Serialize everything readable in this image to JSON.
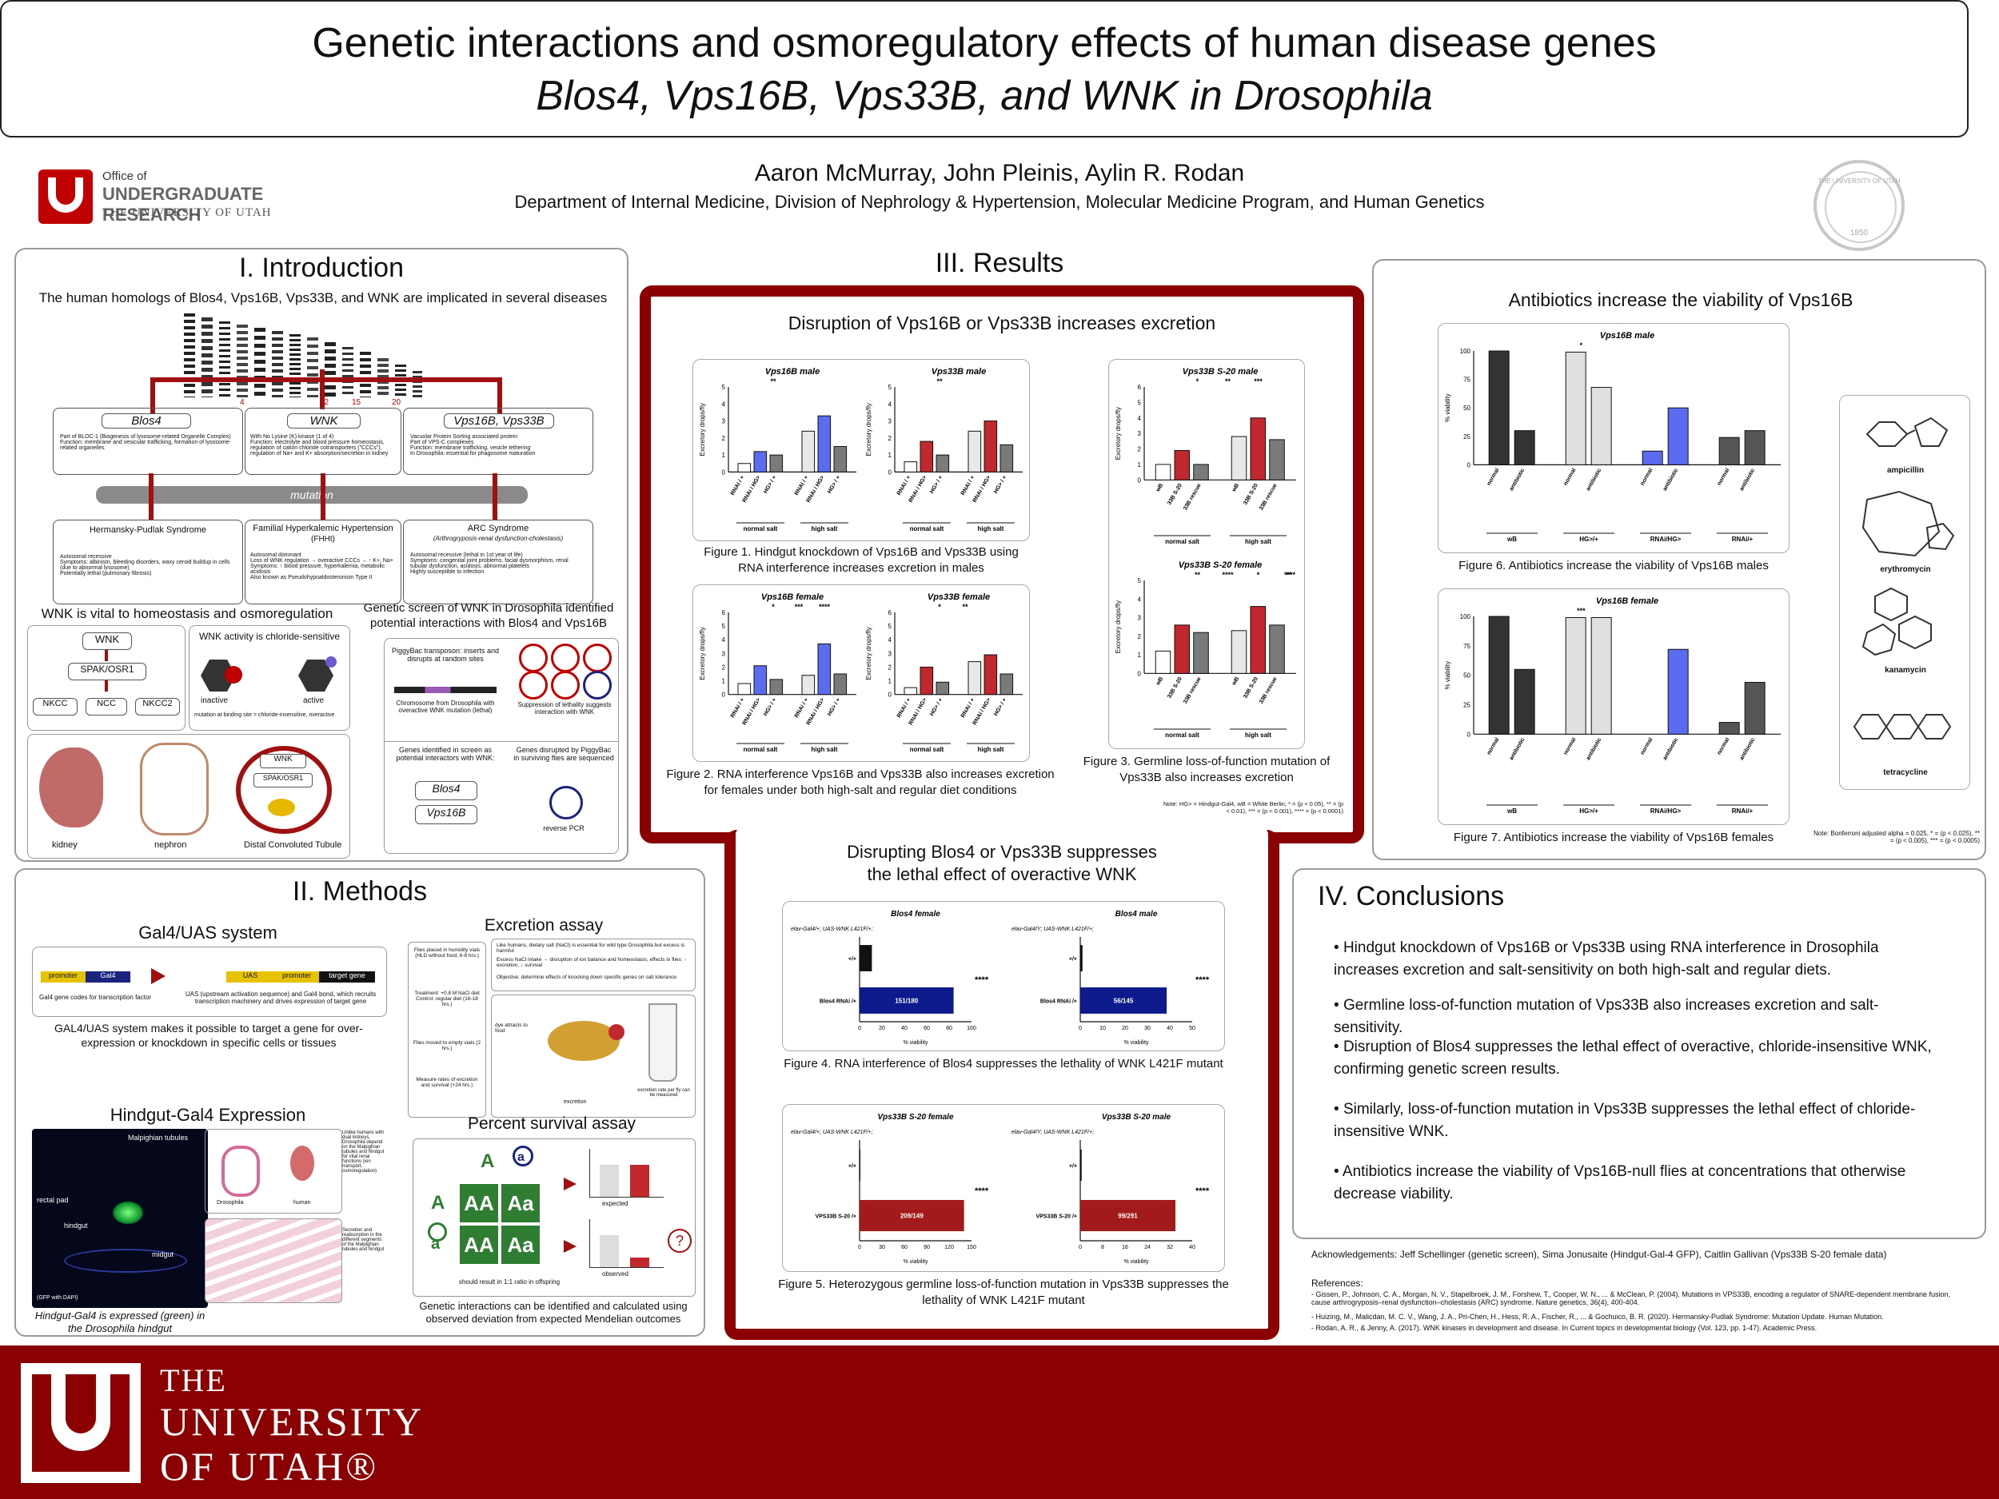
{
  "title": {
    "line1": "Genetic interactions and osmoregulatory effects of human disease genes",
    "line2": "Blos4, Vps16B, Vps33B, and WNK in Drosophila"
  },
  "header": {
    "office_line1": "Office of",
    "office_line2": "UNDERGRADUATE RESEARCH",
    "office_line3": "THE UNIVERSITY OF UTAH",
    "authors": "Aaron McMurray, John Pleinis, Aylin R. Rodan",
    "department": "Department of Internal Medicine, Division of Nephrology & Hypertension, Molecular Medicine Program, and Human Genetics",
    "seal_text": "THE UNIVERSITY OF UTAH",
    "seal_year": "1850"
  },
  "intro": {
    "heading": "I. Introduction",
    "subtitle": "The human homologs of Blos4, Vps16B, Vps33B, and WNK are implicated in several diseases",
    "genes": [
      "Blos4",
      "WNK",
      "Vps16B, Vps33B"
    ],
    "chromosomes": [
      "4",
      "12",
      "15",
      "20"
    ],
    "gene_notes": [
      "Part of BLOC-1 (Biogenesis of lysosome-related Organelle Complex)\nFunction: membrane and vesicular trafficking, formation of lysosome-related organelles",
      "With No Lysine (K) kinase (1 of 4)\nFunction: electrolyte and blood pressure homeostasis, regulation of cation chloride cotransporters (\"CCCs\"), regulation of Na+ and K+ absorption/secretion in kidney",
      "Vacuolar Protein Sorting associated protein\nPart of VPS-C complexes\nFunction: membrane trafficking, vesicle tethering\nIn Drosophila: essential for phagosome maturation"
    ],
    "mutation_label": "mutation",
    "diseases": [
      {
        "name": "Hermansky-Pudlak Syndrome",
        "sub": "",
        "notes": "Autosomal recessive\nSymptoms: albinism, bleeding disorders, waxy ceroid buildup in cells (due to abnormal lysosome)\nPotentially lethal (pulmonary fibrosis)"
      },
      {
        "name": "Familial Hyperkalemic Hypertension",
        "sub": "(FHHt)",
        "notes": "Autosomal dominant\nLoss of WNK regulation → overactive CCCs → ↑ K+, Na+\nSymptoms: ↑ blood pressure, hyperkalemia, metabolic acidosis\nAlso known as Pseudohypoaldosteronism Type II"
      },
      {
        "name": "ARC Syndrome",
        "sub": "(Arthrogryposis-renal dysfunction-cholestasis)",
        "notes": "Autosomal recessive (lethal in 1st year of life)\nSymptoms: congenital joint problems, facial dysmorphism, renal tubular dysfunction, acidosis, abnormal platelets\nHighly susceptible to infection"
      }
    ],
    "wnk_heading": "WNK is vital to homeostasis and osmoregulation",
    "wnk_nodes": [
      "WNK",
      "SPAK/OSR1",
      "NKCC",
      "NCC",
      "NKCC2"
    ],
    "wnk_chloride": "WNK activity is chloride-sensitive",
    "wnk_states": [
      "inactive",
      "active"
    ],
    "wnk_mut_note": "mutation at binding site = chloride-insensitive, overactive",
    "kidney_labels": [
      "kidney",
      "nephron",
      "Distal Convoluted Tubule"
    ],
    "screen_heading": "Genetic screen of WNK in Drosophila identified potential interactions with Blos4 and Vps16B",
    "screen_box1": "PiggyBac transposon: inserts and disrupts at random sites",
    "screen_box2": "Chromosome from Drosophila with overactive WNK mutation (lethal)",
    "screen_box3": "Suppression of lethality suggests interaction with WNK",
    "screen_box4": "Genes identified in screen as potential interactors with WNK:",
    "screen_genes": [
      "Blos4",
      "Vps16B"
    ],
    "screen_box5": "Genes disrupted by PiggyBac in surviving flies are sequenced",
    "screen_pcr": "reverse PCR"
  },
  "methods": {
    "heading": "II. Methods",
    "gal4_title": "Gal4/UAS system",
    "gal4_labels": [
      "promoter",
      "Gal4",
      "UAS",
      "promoter",
      "target gene"
    ],
    "gal4_note1": "Gal4 gene codes for transcription factor",
    "gal4_note2": "UAS (upstream activation sequence) and Gal4 bond, which recruits transcription machinery and drives expression of target gene",
    "gal4_caption": "GAL4/UAS system makes it possible to target a gene for over-expression or knockdown in specific cells or tissues",
    "hindgut_title": "Hindgut-Gal4 Expression",
    "hindgut_labels": [
      "Malpighian tubules",
      "rectal pad",
      "hindgut",
      "midgut",
      "(GFP with DAPI)"
    ],
    "hindgut_caption": "Hindgut-Gal4 is expressed (green) in the Drosophila hindgut",
    "hindgut_note1": "Unlike humans with dual kidneys, Drosophila depend on the Malpighian tubules and hindgut for vital renal functions (ion transport, osmoregulation)",
    "hindgut_note2": "Secretion and reabsorption in the different segments of the Malpighian tubules and hindgut",
    "hindgut_organs": [
      "Drosophila",
      "human"
    ],
    "excretion_title": "Excretion assay",
    "excretion_steps": [
      "Flies placed in humidity vials (HLD without food, 6-8 hrs.)",
      "Treatment: +0.8 M NaCl diet Control: regular diet (16-18 hrs.)",
      "Flies moved to empty vials (2 hrs.)",
      "Measure rates of excretion and survival (+24 hrs.)"
    ],
    "excretion_notes": [
      "Like humans, dietary salt (NaCl) is essential for wild type Drosophila but excess is harmful",
      "Excess NaCl intake → disruption of ion balance and homeostasis; effects in flies: ↑ excretion, ↓ survival",
      "Objective: determine effects of knocking down specific genes on salt tolerance"
    ],
    "excretion_labels": [
      "excretion",
      "dye attracts to food",
      "excretion rate per fly can be measured"
    ],
    "survival_title": "Percent survival assay",
    "punnett": [
      "A",
      "a",
      "A",
      "AA",
      "Aa",
      "a",
      "AA",
      "Aa"
    ],
    "survival_labels": [
      "expected",
      "observed"
    ],
    "survival_note": "should result in 1:1 ratio in offspring",
    "survival_caption": "Genetic interactions can be identified and calculated using observed deviation from expected Mendelian outcomes"
  },
  "results": {
    "heading": "III. Results",
    "excretion_heading": "Disruption of Vps16B or Vps33B increases excretion",
    "fig1_caption": "Figure 1. Hindgut knockdown of Vps16B and Vps33B using RNA interference increases excretion in males",
    "fig2_caption": "Figure 2. RNA interference Vps16B and Vps33B also increases excretion for females under both high-salt and regular diet conditions",
    "fig3_caption": "Figure 3. Germline loss-of-function mutation of Vps33B also increases excretion",
    "fig3_note": "Note: HG> = Hindgut-Gal4, wB = White Berlin; * = (p < 0.05), ** = (p < 0.01), *** = (p < 0.001), **** = (p < 0.0001)",
    "lethal_heading1": "Disrupting Blos4 or Vps33B suppresses",
    "lethal_heading2": "the lethal effect of overactive WNK",
    "fig4_caption": "Figure 4. RNA interference of Blos4 suppresses the lethality of WNK L421F mutant",
    "fig5_caption": "Figure 5. Heterozygous germline loss-of-function mutation in Vps33B suppresses the lethality of WNK L421F mutant",
    "antibiotic_heading": "Antibiotics increase the viability of Vps16B",
    "fig6_caption": "Figure 6. Antibiotics increase the viability of Vps16B males",
    "fig7_caption": "Figure 7. Antibiotics increase the viability of Vps16B females",
    "fig7_note": "Note: Bonferroni adjusted alpha = 0.025, * = (p < 0.025), ** = (p < 0.005), *** = (p < 0.0005)",
    "antibiotics": [
      "ampicillin",
      "erythromycin",
      "kanamycin",
      "tetracycline"
    ]
  },
  "conclusions": {
    "heading": "IV. Conclusions",
    "items": [
      "Hindgut knockdown of Vps16B or Vps33B using RNA interference in Drosophila increases excretion and salt-sensitivity on both high-salt and regular diets.",
      "Germline loss-of-function mutation of Vps33B also increases excretion and salt-sensitivity.",
      "Disruption of Blos4 suppresses the lethal effect of overactive, chloride-insensitive WNK, confirming genetic screen results.",
      "Similarly, loss-of-function mutation in Vps33B suppresses the lethal effect of chloride-insensitive WNK.",
      "Antibiotics increase the viability of Vps16B-null flies at concentrations that otherwise decrease viability."
    ],
    "acknowledgements": "Acknowledgements: Jeff Schellinger (genetic screen), Sima Jonusaite (Hindgut-Gal-4 GFP), Caitlin Gallivan (Vps33B S-20 female data)",
    "refs_heading": "References:",
    "refs": [
      "- Gissen, P., Johnson, C. A., Morgan, N. V., Stapelbroek, J. M., Forshew, T., Cooper, W. N., ... & McClean, P. (2004). Mutations in VPS33B, encoding a regulator of SNARE-dependent membrane fusion, cause arthrogryposis–renal dysfunction–cholestasis (ARC) syndrome. Nature genetics, 36(4), 400-404.",
      "- Huizing, M., Malicdan, M. C. V., Wang, J. A., Pri-Chen, H., Hess, R. A., Fischer, R., ... & Gochuico, B. R. (2020). Hermansky-Pudlak Syndrome: Mutation Update. Human Mutation.",
      "- Rodan, A. R., & Jenny, A. (2017). WNK kinases in development and disease. In Current topics in developmental biology (Vol. 123, pp. 1-47). Academic Press."
    ]
  },
  "footer": {
    "line1": "THE",
    "line2": "UNIVERSITY",
    "line3": "OF UTAH®"
  },
  "colors": {
    "utah_red": "#8b0000",
    "logo_red": "#c00000",
    "blue_bar": "#5b6cf0",
    "red_bar": "#c0282d",
    "navy_bar": "#0d1a8c",
    "dark_red_bar": "#a31a1a"
  },
  "chart_data": [
    {
      "id": "fig1a",
      "type": "bar",
      "title": "Vps16B male",
      "ylabel": "Excretory drops/fly",
      "ylim": [
        0,
        5
      ],
      "categories": [
        "RNAi / +",
        "RNAi / HG>",
        "HG> / +",
        "RNAi / +",
        "RNAi / HG>",
        "HG> / +"
      ],
      "groups": [
        "normal salt",
        "high salt"
      ],
      "values": [
        0.5,
        1.2,
        1.0,
        2.4,
        3.3,
        1.5
      ],
      "colors": [
        "#ffffff",
        "#5b6cf0",
        "#7a7a7a",
        "#e8e8e8",
        "#5b6cf0",
        "#7a7a7a"
      ],
      "sig": [
        "**"
      ]
    },
    {
      "id": "fig1b",
      "type": "bar",
      "title": "Vps33B male",
      "ylabel": "Excretory drops/fly",
      "ylim": [
        0,
        5
      ],
      "categories": [
        "RNAi / +",
        "RNAi / HG>",
        "HG> / +",
        "RNAi / +",
        "RNAi / HG>",
        "HG> / +"
      ],
      "groups": [
        "normal salt",
        "high salt"
      ],
      "values": [
        0.6,
        1.8,
        1.0,
        2.4,
        3.0,
        1.6
      ],
      "colors": [
        "#ffffff",
        "#c0282d",
        "#7a7a7a",
        "#e8e8e8",
        "#c0282d",
        "#7a7a7a"
      ],
      "sig": [
        "**"
      ]
    },
    {
      "id": "fig2a",
      "type": "bar",
      "title": "Vps16B female",
      "ylabel": "Excretory drops/fly",
      "ylim": [
        0,
        6
      ],
      "categories": [
        "RNAi / +",
        "RNAi / HG>",
        "HG> / +",
        "RNAi / +",
        "RNAi / HG>",
        "HG> / +"
      ],
      "groups": [
        "normal salt",
        "high salt"
      ],
      "values": [
        0.8,
        2.1,
        1.1,
        1.4,
        3.7,
        1.5
      ],
      "colors": [
        "#ffffff",
        "#5b6cf0",
        "#7a7a7a",
        "#e8e8e8",
        "#5b6cf0",
        "#7a7a7a"
      ],
      "sig": [
        "*",
        "***",
        "****"
      ]
    },
    {
      "id": "fig2b",
      "type": "bar",
      "title": "Vps33B female",
      "ylabel": "Excretory drops/fly",
      "ylim": [
        0,
        6
      ],
      "categories": [
        "RNAi / +",
        "RNAi / HG>",
        "HG> / +",
        "RNAi / +",
        "RNAi / HG>",
        "HG> / +"
      ],
      "groups": [
        "normal salt",
        "high salt"
      ],
      "values": [
        0.5,
        2.0,
        0.9,
        2.4,
        2.9,
        1.5
      ],
      "colors": [
        "#ffffff",
        "#c0282d",
        "#7a7a7a",
        "#e8e8e8",
        "#c0282d",
        "#7a7a7a"
      ],
      "sig": [
        "*",
        "**"
      ]
    },
    {
      "id": "fig3a",
      "type": "bar",
      "title": "Vps33B S-20 male",
      "ylabel": "Excretory drops/fly",
      "ylim": [
        0,
        6
      ],
      "categories": [
        "wB",
        "33B S-20",
        "33B rescue",
        "wB",
        "33B S-20",
        "33B rescue"
      ],
      "groups": [
        "normal salt",
        "high salt"
      ],
      "values": [
        1.0,
        1.9,
        1.0,
        2.8,
        4.0,
        2.6
      ],
      "colors": [
        "#ffffff",
        "#c0282d",
        "#7a7a7a",
        "#e8e8e8",
        "#c0282d",
        "#7a7a7a"
      ],
      "sig": [
        "*",
        "**",
        "***"
      ]
    },
    {
      "id": "fig3b",
      "type": "bar",
      "title": "Vps33B S-20 female",
      "ylabel": "Excretory drops/fly",
      "ylim": [
        0,
        5
      ],
      "categories": [
        "wB",
        "33B S-20",
        "33B rescue",
        "wB",
        "33B S-20",
        "33B rescue"
      ],
      "groups": [
        "normal salt",
        "high salt"
      ],
      "values": [
        1.2,
        2.6,
        2.2,
        2.3,
        3.6,
        2.6
      ],
      "colors": [
        "#ffffff",
        "#c0282d",
        "#7a7a7a",
        "#e8e8e8",
        "#c0282d",
        "#7a7a7a"
      ],
      "sig": [
        "**",
        "****",
        "*",
        "**",
        "****"
      ]
    },
    {
      "id": "fig4a",
      "type": "hbar",
      "title": "Blos4 female",
      "xlabel": "% viability",
      "xlim": [
        0,
        100
      ],
      "legend_title": "elav-Gal4/+; UAS-WNK L421F/+;",
      "categories": [
        "+/+",
        "Blos4 RNAi /+"
      ],
      "values": [
        11,
        84
      ],
      "labels": [
        "",
        "151/180"
      ],
      "colors": [
        "#111111",
        "#0d1a8c"
      ],
      "sig": [
        "****"
      ]
    },
    {
      "id": "fig4b",
      "type": "hbar",
      "title": "Blos4 male",
      "xlabel": "% viability",
      "xlim": [
        0,
        50
      ],
      "legend_title": "elav-Gal4/Y; UAS-WNK L421F/+;",
      "categories": [
        "+/+",
        "Blos4 RNAi /+"
      ],
      "values": [
        1,
        38.6
      ],
      "labels": [
        "",
        "56/145"
      ],
      "colors": [
        "#111111",
        "#0d1a8c"
      ],
      "sig": [
        "****"
      ]
    },
    {
      "id": "fig5a",
      "type": "hbar",
      "title": "Vps33B S-20 female",
      "xlabel": "% viability",
      "xlim": [
        0,
        150
      ],
      "legend_title": "elav-Gal4/+; UAS-WNK L421F/+;",
      "categories": [
        "+/+",
        "VPS33B S-20 /+"
      ],
      "values": [
        1,
        140
      ],
      "labels": [
        "",
        "209/149"
      ],
      "colors": [
        "#111111",
        "#a31a1a"
      ],
      "sig": [
        "****"
      ]
    },
    {
      "id": "fig5b",
      "type": "hbar",
      "title": "Vps33B S-20 male",
      "xlabel": "% viability",
      "xlim": [
        0,
        40
      ],
      "legend_title": "elav-Gal4/Y; UAS-WNK L421F/+;",
      "categories": [
        "+/+",
        "VPS33B S-20 /+"
      ],
      "values": [
        0.5,
        34
      ],
      "labels": [
        "",
        "99/291"
      ],
      "colors": [
        "#111111",
        "#a31a1a"
      ],
      "sig": [
        "****"
      ]
    },
    {
      "id": "fig6",
      "type": "bar",
      "title": "Vps16B male",
      "ylabel": "% viability",
      "ylim": [
        0,
        100
      ],
      "categories": [
        "normal",
        "antibiotic",
        "normal",
        "antibiotic",
        "normal",
        "antibiotic",
        "normal",
        "antibiotic"
      ],
      "groups": [
        "wB",
        "HG>/+",
        "RNAi/HG>",
        "RNAi/+"
      ],
      "values": [
        100,
        30,
        99,
        68,
        12,
        50,
        24,
        30
      ],
      "colors": [
        "#333333",
        "#333333",
        "#e0e0e0",
        "#e0e0e0",
        "#5b6cf0",
        "#5b6cf0",
        "#555555",
        "#555555"
      ],
      "sig": [
        "*"
      ]
    },
    {
      "id": "fig7",
      "type": "bar",
      "title": "Vps16B female",
      "ylabel": "% viability",
      "ylim": [
        0,
        100
      ],
      "categories": [
        "normal",
        "antibiotic",
        "normal",
        "antibiotic",
        "normal",
        "antibiotic",
        "normal",
        "antibiotic"
      ],
      "groups": [
        "wB",
        "HG>/+",
        "RNAi/HG>",
        "RNAi/+"
      ],
      "values": [
        100,
        55,
        99,
        99,
        0,
        72,
        10,
        44
      ],
      "colors": [
        "#333333",
        "#333333",
        "#e0e0e0",
        "#e0e0e0",
        "#5b6cf0",
        "#5b6cf0",
        "#555555",
        "#555555"
      ],
      "sig": [
        "***"
      ]
    }
  ]
}
